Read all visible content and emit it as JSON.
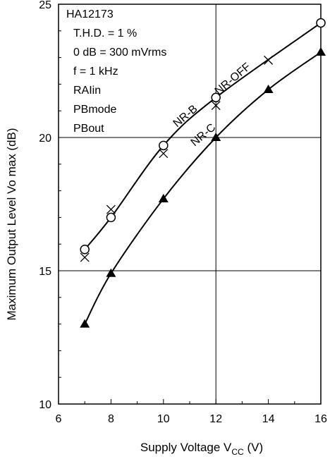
{
  "chart_data": {
    "type": "line",
    "xlabel_main": "Supply Voltage V",
    "xlabel_sub": "CC",
    "xlabel_unit": " (V)",
    "ylabel": "Maximum Output Level Vo max (dB)",
    "xlim": [
      6,
      16
    ],
    "ylim": [
      10,
      25
    ],
    "xticks": [
      "6",
      "8",
      "10",
      "12",
      "14",
      "16"
    ],
    "yticks": [
      "10",
      "15",
      "20",
      "25"
    ],
    "grid": true,
    "annotations": [
      "HA12173",
      "T.H.D. = 1 %",
      "0 dB = 300 mVrms",
      "f = 1 kHz",
      "RAIin",
      "PBmode",
      "PBout"
    ],
    "series": [
      {
        "name": "NR-B",
        "marker": "circle",
        "x": [
          7,
          8,
          10,
          12,
          16
        ],
        "y": [
          15.8,
          17.0,
          19.7,
          21.5,
          24.3
        ]
      },
      {
        "name": "NR-OFF",
        "marker": "cross",
        "x": [
          7,
          8,
          10,
          12,
          14
        ],
        "y": [
          15.5,
          17.3,
          19.4,
          21.2,
          22.9
        ]
      },
      {
        "name": "NR-C",
        "marker": "triangle",
        "x": [
          7,
          8,
          10,
          12,
          14,
          16
        ],
        "y": [
          13.0,
          14.9,
          17.7,
          20.0,
          21.8,
          23.2
        ]
      }
    ]
  }
}
